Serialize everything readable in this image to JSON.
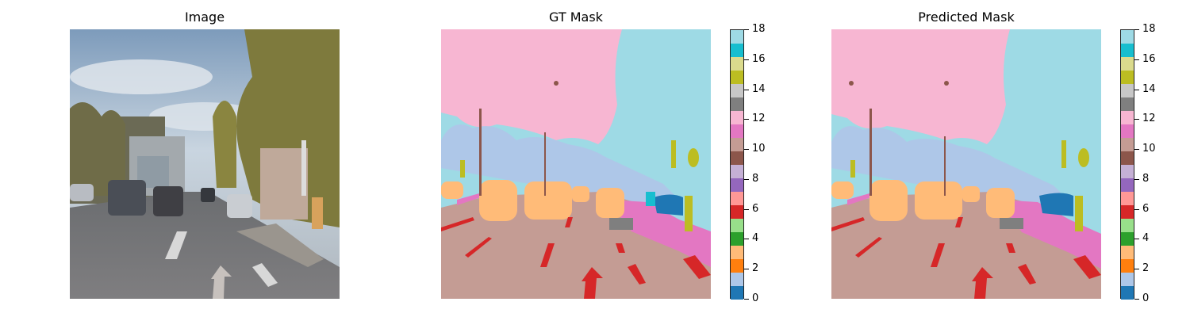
{
  "panels": [
    {
      "title": "Image"
    },
    {
      "title": "GT Mask"
    },
    {
      "title": "Predicted Mask"
    }
  ],
  "colorbar": {
    "tick_labels": [
      "0",
      "2",
      "4",
      "6",
      "8",
      "10",
      "12",
      "14",
      "16",
      "18"
    ],
    "colors": [
      "#1f77b4",
      "#aec7e8",
      "#ff7f0e",
      "#ffbb78",
      "#2ca02c",
      "#98df8a",
      "#d62728",
      "#ff9896",
      "#9467bd",
      "#c5b0d5",
      "#8c564b",
      "#c49c94",
      "#e377c2",
      "#f7b6d2",
      "#7f7f7f",
      "#c7c7c7",
      "#bcbd22",
      "#dbdb8d",
      "#17becf",
      "#9edae5"
    ]
  }
}
